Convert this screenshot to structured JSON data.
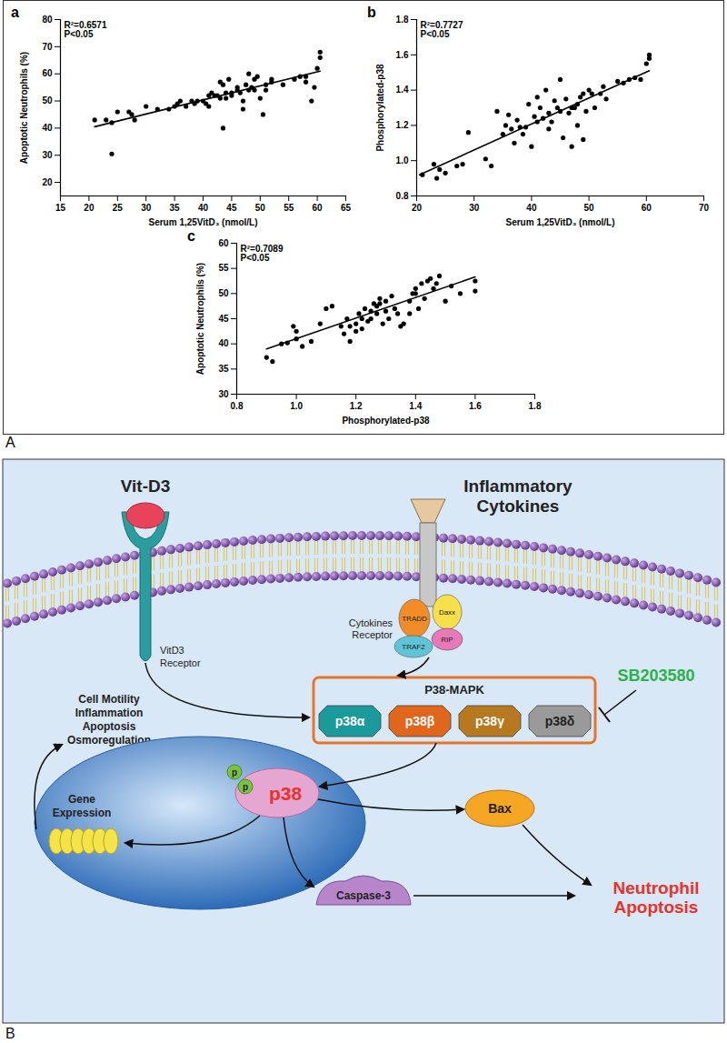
{
  "chart_data": [
    {
      "type": "scatter",
      "title": "a",
      "x_label": "Serum 1,25VitD₃ (nmol/L)",
      "y_label": "Apoptotic Neutrophils (%)",
      "annotations": [
        "R²=0.6571",
        "P<0.05"
      ],
      "color": "#000000",
      "marker": "circle",
      "x": [
        21,
        23,
        24,
        24,
        25,
        27,
        27.5,
        28,
        30,
        32,
        34,
        35,
        35.5,
        36,
        37,
        38,
        38.5,
        39,
        40,
        40.5,
        41,
        41,
        41.5,
        42,
        42.5,
        43,
        43.5,
        43,
        43.5,
        44,
        44,
        44.5,
        45,
        45,
        46,
        46,
        46.5,
        47,
        47,
        47.5,
        48,
        48,
        48.5,
        49,
        49,
        49.5,
        50,
        50.5,
        51,
        51,
        52,
        52,
        54,
        56,
        57,
        58,
        58,
        59,
        59.5,
        60,
        60.5,
        60.5
      ],
      "values": [
        43,
        43,
        30.5,
        42,
        46,
        46,
        45,
        43,
        48,
        47,
        47,
        48,
        49,
        50,
        48,
        50,
        49,
        50,
        50,
        49,
        52,
        48,
        53,
        52,
        52,
        51,
        56,
        57,
        40,
        51,
        53,
        58,
        52,
        53,
        54,
        55,
        53,
        50,
        47,
        56,
        54,
        60,
        55,
        58,
        54,
        59,
        51,
        45,
        56,
        54,
        57,
        58,
        56,
        58,
        59,
        59,
        57,
        50,
        55,
        62,
        66,
        68
      ],
      "fit_line": {
        "x": [
          21,
          60.5
        ],
        "y": [
          40.5,
          61
        ]
      },
      "xlim": [
        15,
        65
      ],
      "xticks": [
        15,
        20,
        25,
        30,
        35,
        40,
        45,
        50,
        55,
        60,
        65
      ],
      "ylim": [
        15,
        80
      ],
      "yticks": [
        20,
        30,
        40,
        50,
        60,
        70,
        80
      ]
    },
    {
      "type": "scatter",
      "title": "b",
      "x_label": "Serum 1,25VitD₃ (nmol/L)",
      "y_label": "Phosphorylated-p38",
      "annotations": [
        "R²=0.7727",
        "P<0.05"
      ],
      "color": "#000000",
      "marker": "circle",
      "x": [
        21,
        23,
        23.5,
        24,
        25,
        27,
        28,
        29,
        32,
        33,
        34,
        35,
        35.5,
        36,
        36.5,
        37,
        37.5,
        38,
        38.5,
        39,
        39.5,
        40,
        40.5,
        41,
        41,
        41.5,
        42,
        42.5,
        43,
        43,
        43.5,
        44,
        44.5,
        45,
        45,
        45.5,
        46,
        46.5,
        47,
        47,
        47.5,
        48,
        48.5,
        48,
        49,
        49,
        49.5,
        50,
        50.5,
        51,
        52,
        52.5,
        53,
        55,
        56,
        57,
        58,
        59,
        60,
        60.5,
        60.5
      ],
      "values": [
        0.92,
        0.98,
        0.9,
        0.95,
        0.93,
        0.97,
        0.98,
        1.16,
        1.01,
        0.97,
        1.28,
        1.15,
        1.2,
        1.26,
        1.18,
        1.1,
        1.23,
        1.19,
        1.15,
        1.19,
        1.32,
        1.08,
        1.25,
        1.36,
        1.22,
        1.3,
        1.24,
        1.4,
        1.18,
        1.27,
        1.22,
        1.34,
        1.3,
        1.46,
        1.28,
        1.13,
        1.35,
        1.27,
        1.3,
        1.08,
        1.3,
        1.32,
        1.36,
        1.2,
        1.38,
        1.12,
        1.28,
        1.4,
        1.38,
        1.3,
        1.38,
        1.42,
        1.35,
        1.45,
        1.44,
        1.46,
        1.47,
        1.46,
        1.55,
        1.58,
        1.6
      ],
      "fit_line": {
        "x": [
          20.5,
          60.5
        ],
        "y": [
          0.92,
          1.51
        ]
      },
      "xlim": [
        20,
        70
      ],
      "xticks": [
        20,
        30,
        40,
        50,
        60,
        70
      ],
      "ylim": [
        0.8,
        1.8
      ],
      "yticks": [
        0.8,
        {
          "value": 1,
          "label": "1.0"
        },
        1.2,
        1.4,
        1.6,
        1.8
      ]
    },
    {
      "type": "scatter",
      "title": "c",
      "x_label": "Phosphorylated-p38",
      "y_label": "Apoptotic Neutrophils (%)",
      "annotations": [
        "R²=0.7089",
        "P<0.05"
      ],
      "color": "#000000",
      "marker": "circle",
      "x": [
        0.9,
        0.92,
        0.95,
        0.97,
        0.99,
        1.0,
        1.0,
        1.02,
        1.05,
        1.08,
        1.1,
        1.12,
        1.15,
        1.16,
        1.17,
        1.18,
        1.18,
        1.2,
        1.2,
        1.21,
        1.22,
        1.22,
        1.23,
        1.24,
        1.25,
        1.25,
        1.26,
        1.27,
        1.27,
        1.28,
        1.28,
        1.29,
        1.3,
        1.3,
        1.31,
        1.32,
        1.33,
        1.34,
        1.35,
        1.36,
        1.38,
        1.38,
        1.39,
        1.4,
        1.4,
        1.41,
        1.42,
        1.43,
        1.44,
        1.45,
        1.46,
        1.47,
        1.48,
        1.5,
        1.52,
        1.55,
        1.6,
        1.6
      ],
      "values": [
        37.3,
        36.5,
        40,
        40.2,
        43.5,
        41,
        42.5,
        39.5,
        40.5,
        44,
        47,
        47.5,
        43.5,
        42,
        45,
        40.5,
        43.5,
        44,
        42.5,
        46,
        45,
        43,
        47,
        44.5,
        46.5,
        45,
        48,
        47.5,
        46,
        49,
        48,
        44,
        48.5,
        46.5,
        45,
        49.5,
        47,
        46,
        43.5,
        44,
        48.5,
        46,
        50,
        51,
        50,
        47,
        52,
        49,
        52.5,
        53,
        51,
        52,
        53.5,
        48.5,
        51.5,
        50,
        52.5,
        50.5
      ],
      "fit_line": {
        "x": [
          0.9,
          1.6
        ],
        "y": [
          39,
          53.3
        ]
      },
      "xlim": [
        0.8,
        1.8
      ],
      "xticks": [
        0.8,
        {
          "value": 1,
          "label": "1.0"
        },
        1.2,
        1.4,
        1.6,
        1.8
      ],
      "ylim": [
        30,
        60
      ],
      "yticks": [
        30,
        35,
        40,
        45,
        50,
        55,
        60
      ]
    }
  ],
  "panel_labels": [
    "A",
    "B"
  ],
  "diagram": {
    "ligand": "Vit-D3",
    "vitd_receptor": [
      "VitD3",
      "Receptor"
    ],
    "cytokines": [
      "Inflammatory",
      "Cytokines"
    ],
    "cytokine_receptor": [
      "Cytokines",
      "Receptor"
    ],
    "adaptors": [
      "TRADD",
      "Daxx",
      "RIP",
      "TRAF2"
    ],
    "inhibitor": "SB203580",
    "mapk_box": {
      "title": "P38-MAPK",
      "isoforms": [
        "p38α",
        "p38β",
        "p38γ",
        "p38δ"
      ]
    },
    "phospho": [
      "p",
      "p"
    ],
    "kinase": "p38",
    "gene_expression": [
      "Gene",
      "Expression"
    ],
    "outcomes": [
      "Cell Motility",
      "Inflammation",
      "Apoptosis",
      "Osmoregulation"
    ],
    "bax": "Bax",
    "caspase": "Caspase-3",
    "result": [
      "Neutrophil",
      "Apoptosis"
    ]
  }
}
